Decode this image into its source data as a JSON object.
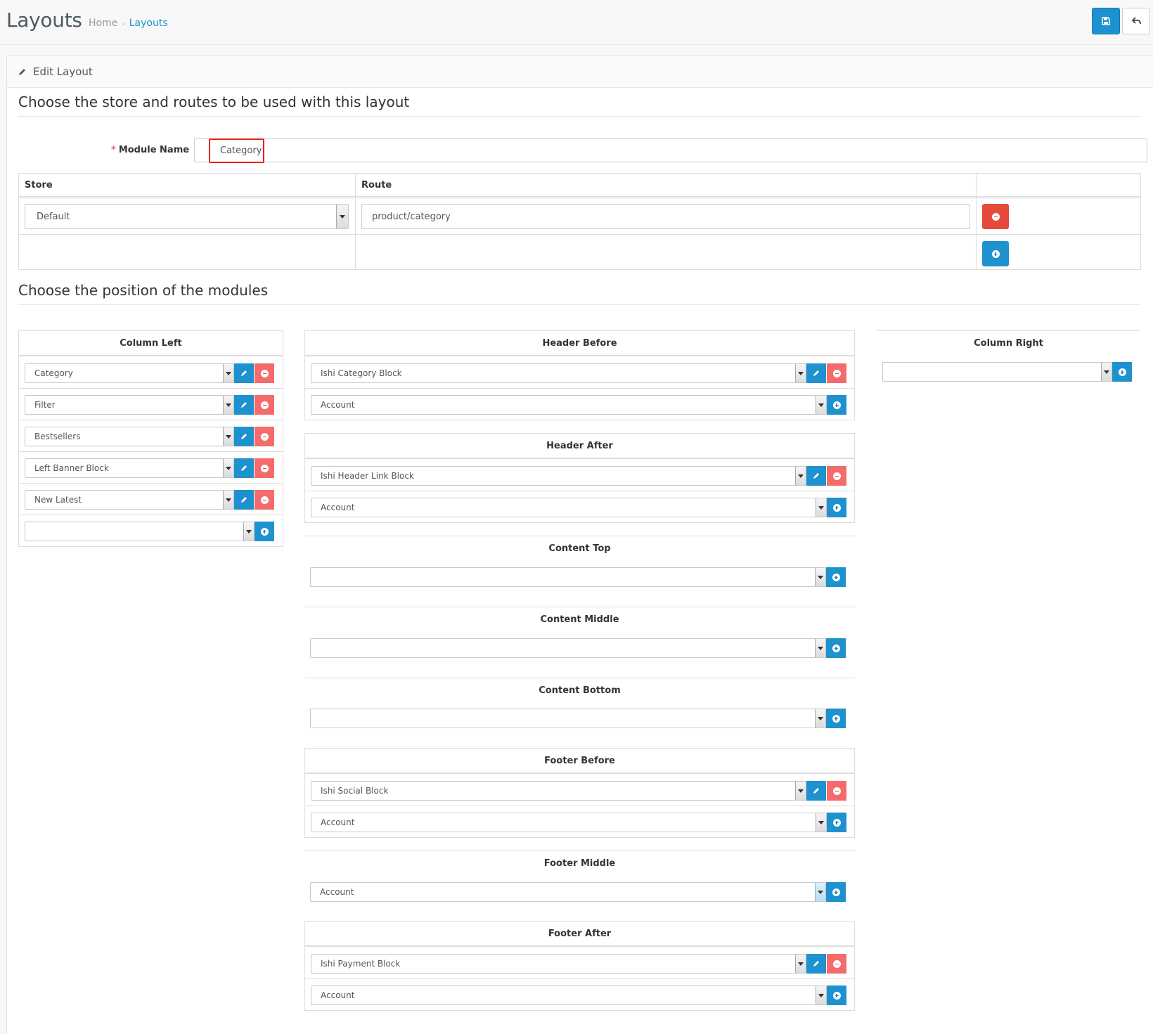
{
  "header": {
    "title": "Layouts",
    "breadcrumb": [
      "Home",
      "Layouts"
    ],
    "breadcrumb_sep": "›"
  },
  "panel": {
    "title": "Edit Layout",
    "legend_routes": "Choose the store and routes to be used with this layout",
    "legend_modules": "Choose the position of the modules"
  },
  "form": {
    "module_name_label": "Module Name",
    "module_name_value": "Category",
    "required_mark": "*"
  },
  "routes_table": {
    "headers": [
      "Store",
      "Route",
      ""
    ],
    "rows": [
      {
        "store": "Default",
        "route": "product/category"
      }
    ]
  },
  "positions": {
    "column_left": {
      "title": "Column Left",
      "modules": [
        "Category",
        "Filter",
        "Bestsellers",
        "Left Banner Block",
        "New Latest"
      ],
      "add_value": ""
    },
    "header_before": {
      "title": "Header Before",
      "modules": [
        "Ishi Category Block"
      ],
      "add_value": "Account"
    },
    "header_after": {
      "title": "Header After",
      "modules": [
        "Ishi Header Link Block"
      ],
      "add_value": "Account"
    },
    "content_top": {
      "title": "Content Top",
      "modules": [],
      "add_value": ""
    },
    "content_middle": {
      "title": "Content Middle",
      "modules": [],
      "add_value": ""
    },
    "content_bottom": {
      "title": "Content Bottom",
      "modules": [],
      "add_value": ""
    },
    "footer_before": {
      "title": "Footer Before",
      "modules": [
        "Ishi Social Block"
      ],
      "add_value": "Account"
    },
    "footer_middle": {
      "title": "Footer Middle",
      "modules": [],
      "add_value": "Account"
    },
    "footer_after": {
      "title": "Footer After",
      "modules": [
        "Ishi Payment Block"
      ],
      "add_value": "Account"
    },
    "column_right": {
      "title": "Column Right",
      "modules": [],
      "add_value": ""
    }
  },
  "colors": {
    "primary": "#1e91cf",
    "danger": "#f56b6b",
    "highlight": "#e3231a"
  },
  "icons": {
    "save": "save-icon",
    "back": "reply-icon",
    "edit": "pencil-icon",
    "remove": "minus-circle-icon",
    "add": "plus-circle-icon"
  }
}
